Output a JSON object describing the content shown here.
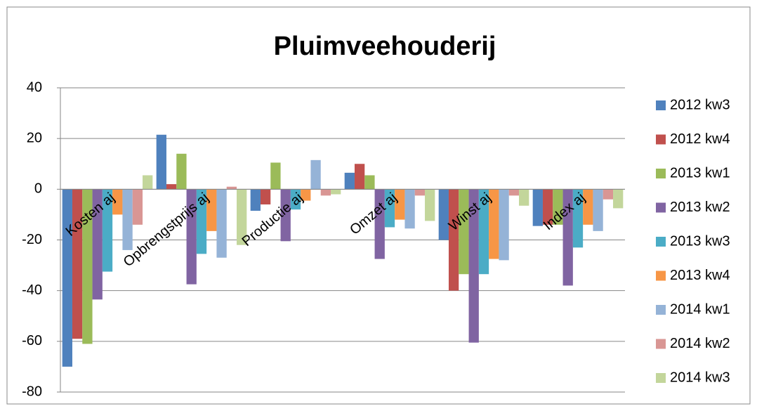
{
  "chart_data": {
    "type": "bar",
    "title": "Pluimveehouderij",
    "categories": [
      "Kosten aj",
      "Opbrengstprijs aj",
      "Productie aj",
      "Omzet aj",
      "Winst aj",
      "Index aj"
    ],
    "series": [
      {
        "name": "2012 kw3",
        "color": "#4F81BD",
        "values": [
          -70,
          21.5,
          -8.5,
          6.5,
          -20,
          -14.5
        ]
      },
      {
        "name": "2012 kw4",
        "color": "#C0504D",
        "values": [
          -59,
          2,
          -6,
          10,
          -40,
          -14
        ]
      },
      {
        "name": "2013 kw1",
        "color": "#9BBB59",
        "values": [
          -61,
          14,
          10.5,
          5.5,
          -33.5,
          -14
        ]
      },
      {
        "name": "2013 kw2",
        "color": "#8064A2",
        "values": [
          -43.5,
          -37.5,
          -20.5,
          -27.5,
          -60.5,
          -38
        ]
      },
      {
        "name": "2013 kw3",
        "color": "#4BACC6",
        "values": [
          -32.5,
          -25.5,
          -8,
          -15,
          -33.5,
          -23
        ]
      },
      {
        "name": "2013 kw4",
        "color": "#F79646",
        "values": [
          -10,
          -16.5,
          -4.5,
          -12,
          -27.5,
          -14
        ]
      },
      {
        "name": "2014 kw1",
        "color": "#95B3D7",
        "values": [
          -24,
          -27,
          11.5,
          -15.5,
          -28,
          -16.5
        ]
      },
      {
        "name": "2014 kw2",
        "color": "#D99694",
        "values": [
          -14,
          1,
          -2.5,
          -2.5,
          -2.5,
          -4
        ]
      },
      {
        "name": "2014 kw3",
        "color": "#C3D69B",
        "values": [
          5.5,
          -22,
          -2,
          -12.5,
          -6.5,
          -7.5
        ]
      }
    ],
    "ylim": [
      -80,
      40
    ],
    "yticks": [
      -80,
      -60,
      -40,
      -20,
      0,
      20,
      40
    ],
    "grid": true,
    "legend": "right"
  }
}
